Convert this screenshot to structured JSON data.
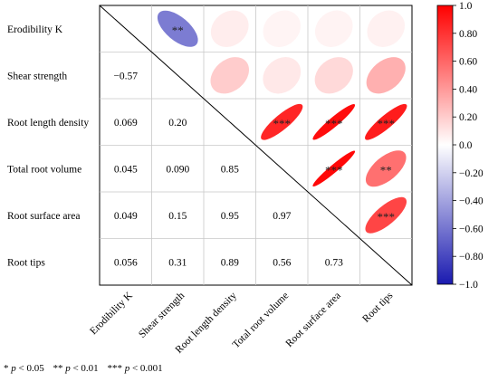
{
  "chart_data": {
    "type": "heatmap",
    "variables": [
      "Erodibility K",
      "Shear strength",
      "Root length density",
      "Total root volume",
      "Root surface area",
      "Root tips"
    ],
    "lower_triangle_values": [
      [
        null,
        null,
        null,
        null,
        null,
        null
      ],
      [
        "−0.57",
        null,
        null,
        null,
        null,
        null
      ],
      [
        "0.069",
        "0.20",
        null,
        null,
        null,
        null
      ],
      [
        "0.045",
        "0.090",
        "0.85",
        null,
        null,
        null
      ],
      [
        "0.049",
        "0.15",
        "0.95",
        "0.97",
        null,
        null
      ],
      [
        "0.056",
        "0.31",
        "0.89",
        "0.56",
        "0.73",
        null
      ]
    ],
    "correlation_matrix": [
      [
        1,
        -0.57,
        0.069,
        0.045,
        0.049,
        0.056
      ],
      [
        -0.57,
        1,
        0.2,
        0.09,
        0.15,
        0.31
      ],
      [
        0.069,
        0.2,
        1,
        0.85,
        0.95,
        0.89
      ],
      [
        0.045,
        0.09,
        0.85,
        1,
        0.97,
        0.56
      ],
      [
        0.049,
        0.15,
        0.95,
        0.97,
        1,
        0.73
      ],
      [
        0.056,
        0.31,
        0.89,
        0.56,
        0.73,
        1
      ]
    ],
    "significance": [
      [
        null,
        "**",
        "",
        "",
        "",
        ""
      ],
      [
        null,
        null,
        "",
        "",
        "",
        ""
      ],
      [
        null,
        null,
        null,
        "***",
        "***",
        "***"
      ],
      [
        null,
        null,
        null,
        null,
        "***",
        "**"
      ],
      [
        null,
        null,
        null,
        null,
        null,
        "***"
      ],
      [
        null,
        null,
        null,
        null,
        null,
        null
      ]
    ],
    "colorbar": {
      "range": [
        -1.0,
        1.0
      ],
      "ticks": [
        "1.0",
        "0.80",
        "0.60",
        "0.40",
        "0.20",
        "0.0",
        "−0.20",
        "−0.40",
        "−0.60",
        "−0.80",
        "−1.0"
      ],
      "tick_values": [
        1.0,
        0.8,
        0.6,
        0.4,
        0.2,
        0.0,
        -0.2,
        -0.4,
        -0.6,
        -0.8,
        -1.0
      ],
      "colors": {
        "negative": "#1a1ab0",
        "zero": "#ffffff",
        "positive": "#ff0000"
      }
    },
    "footnote": [
      {
        "sym": "* ",
        "p": "p",
        "txt": " < 0.05"
      },
      {
        "sym": "** ",
        "p": "p",
        "txt": " < 0.01"
      },
      {
        "sym": "*** ",
        "p": "p",
        "txt": " < 0.001"
      }
    ]
  }
}
